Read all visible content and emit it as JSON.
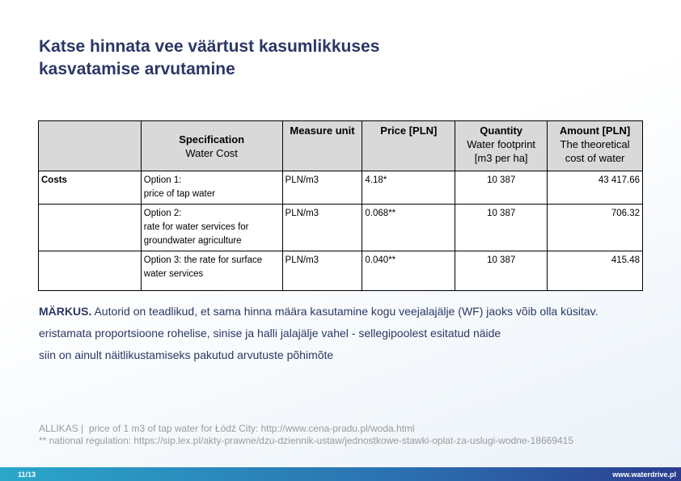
{
  "title_lines": [
    "Katse hinnata vee väärtust kasumlikkuses",
    "kasvatamise arvutamine"
  ],
  "table": {
    "header": [
      {
        "label": "Specification",
        "sub": "Water Cost"
      },
      {
        "label": "Measure unit"
      },
      {
        "label": "Price [PLN]"
      },
      {
        "label": "Quantity",
        "sub": "Water footprint\n[m3 per ha]"
      },
      {
        "label": "Amount [PLN]",
        "sub": "The theoretical\ncost of water"
      }
    ],
    "rows": [
      {
        "group": "Costs",
        "cells": [
          "Option 1:\nprice of tap water",
          "PLN/m3",
          "4.18*",
          "10 387",
          "43 417.66"
        ]
      },
      {
        "cells": [
          "Option 2:\nrate for water services for\ngroundwater agriculture",
          "PLN/m3",
          "0.068**",
          "10 387",
          "706.32"
        ]
      },
      {
        "cells": [
          "Option 3: the rate for surface\nwater services",
          "PLN/m3",
          "0.040**",
          "10 387",
          "415.48"
        ]
      }
    ]
  },
  "note": {
    "label": "MÄRKUS.",
    "lines": [
      "Autorid on teadlikud, et sama hinna määra kasutamine kogu veejalajälje (WF) jaoks võib olla küsitav.",
      "eristamata proportsioone rohelise, sinise ja halli jalajälje vahel - sellegipoolest esitatud näide",
      "siin on ainult näitlikustamiseks pakutud arvutuste põhimõte"
    ]
  },
  "source": {
    "label": "ALLIKAS |",
    "lines": [
      "price of 1 m3 of tap water for Łódź City: http://www.cena-pradu.pl/woda.html",
      "** national regulation: https://sip.lex.pl/akty-prawne/dzu-dziennik-ustaw/jednostkowe-stawki-oplat-za-uslugi-wodne-18669415"
    ]
  },
  "footer": {
    "page": "11/13",
    "url": "www.waterdrive.pl"
  }
}
